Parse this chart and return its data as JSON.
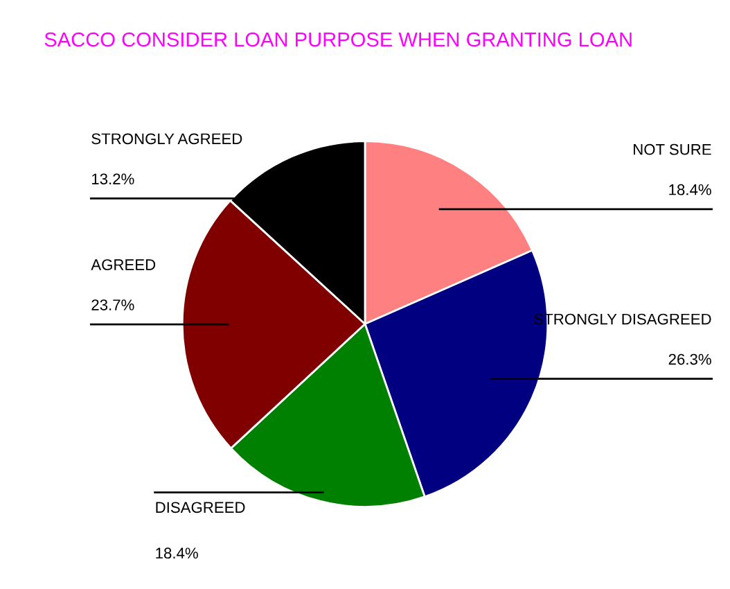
{
  "chart_data": {
    "type": "pie",
    "title": "SACCO CONSIDER LOAN PURPOSE WHEN GRANTING LOAN",
    "categories": [
      "NOT SURE",
      "STRONGLY DISAGREED",
      "DISAGREED",
      "AGREED",
      "STRONGLY AGREED"
    ],
    "values": [
      18.4,
      26.3,
      18.4,
      23.7,
      13.2
    ],
    "colors": [
      "#ff8080",
      "#000080",
      "#008000",
      "#800000",
      "#000000"
    ],
    "value_labels": [
      "18.4%",
      "26.3%",
      "18.4%",
      "23.7%",
      "13.2%"
    ]
  }
}
